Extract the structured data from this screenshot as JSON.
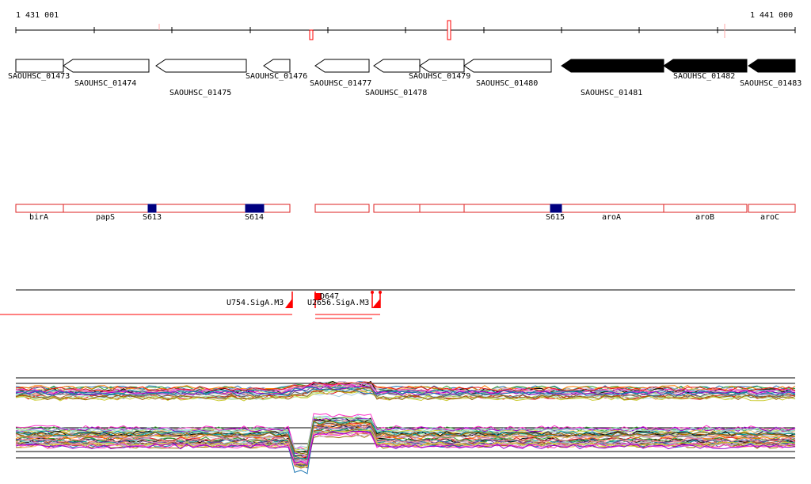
{
  "coords": {
    "start": "1 431 001",
    "end": "1 441 000"
  },
  "genes": [
    {
      "label": "SAOUHSC_01473",
      "strand": "+",
      "filled": false
    },
    {
      "label": "SAOUHSC_01474",
      "strand": "-",
      "filled": false
    },
    {
      "label": "SAOUHSC_01475",
      "strand": "-",
      "filled": false
    },
    {
      "label": "SAOUHSC_01476",
      "strand": "-",
      "filled": false
    },
    {
      "label": "SAOUHSC_01477",
      "strand": "-",
      "filled": false
    },
    {
      "label": "SAOUHSC_01478",
      "strand": "-",
      "filled": false
    },
    {
      "label": "SAOUHSC_01479",
      "strand": "-",
      "filled": false
    },
    {
      "label": "SAOUHSC_01480",
      "strand": "-",
      "filled": false
    },
    {
      "label": "SAOUHSC_01481",
      "strand": "-",
      "filled": true
    },
    {
      "label": "SAOUHSC_01482",
      "strand": "-",
      "filled": true
    },
    {
      "label": "SAOUHSC_01483",
      "strand": "-",
      "filled": true
    }
  ],
  "annotations": {
    "features": [
      "birA",
      "papS",
      "aroA",
      "aroB",
      "aroC"
    ],
    "sites": [
      "S613",
      "S614",
      "S615"
    ]
  },
  "regulatory": {
    "labels": [
      "U754.SigA.M3",
      "U2656.SigA.M3",
      "D647"
    ]
  },
  "colors": {
    "gene_outline": "#000000",
    "gene_fill": "#000000",
    "feature_outline": "#dd2222",
    "site_fill": "#000080",
    "regulatory": "#ff0000"
  }
}
